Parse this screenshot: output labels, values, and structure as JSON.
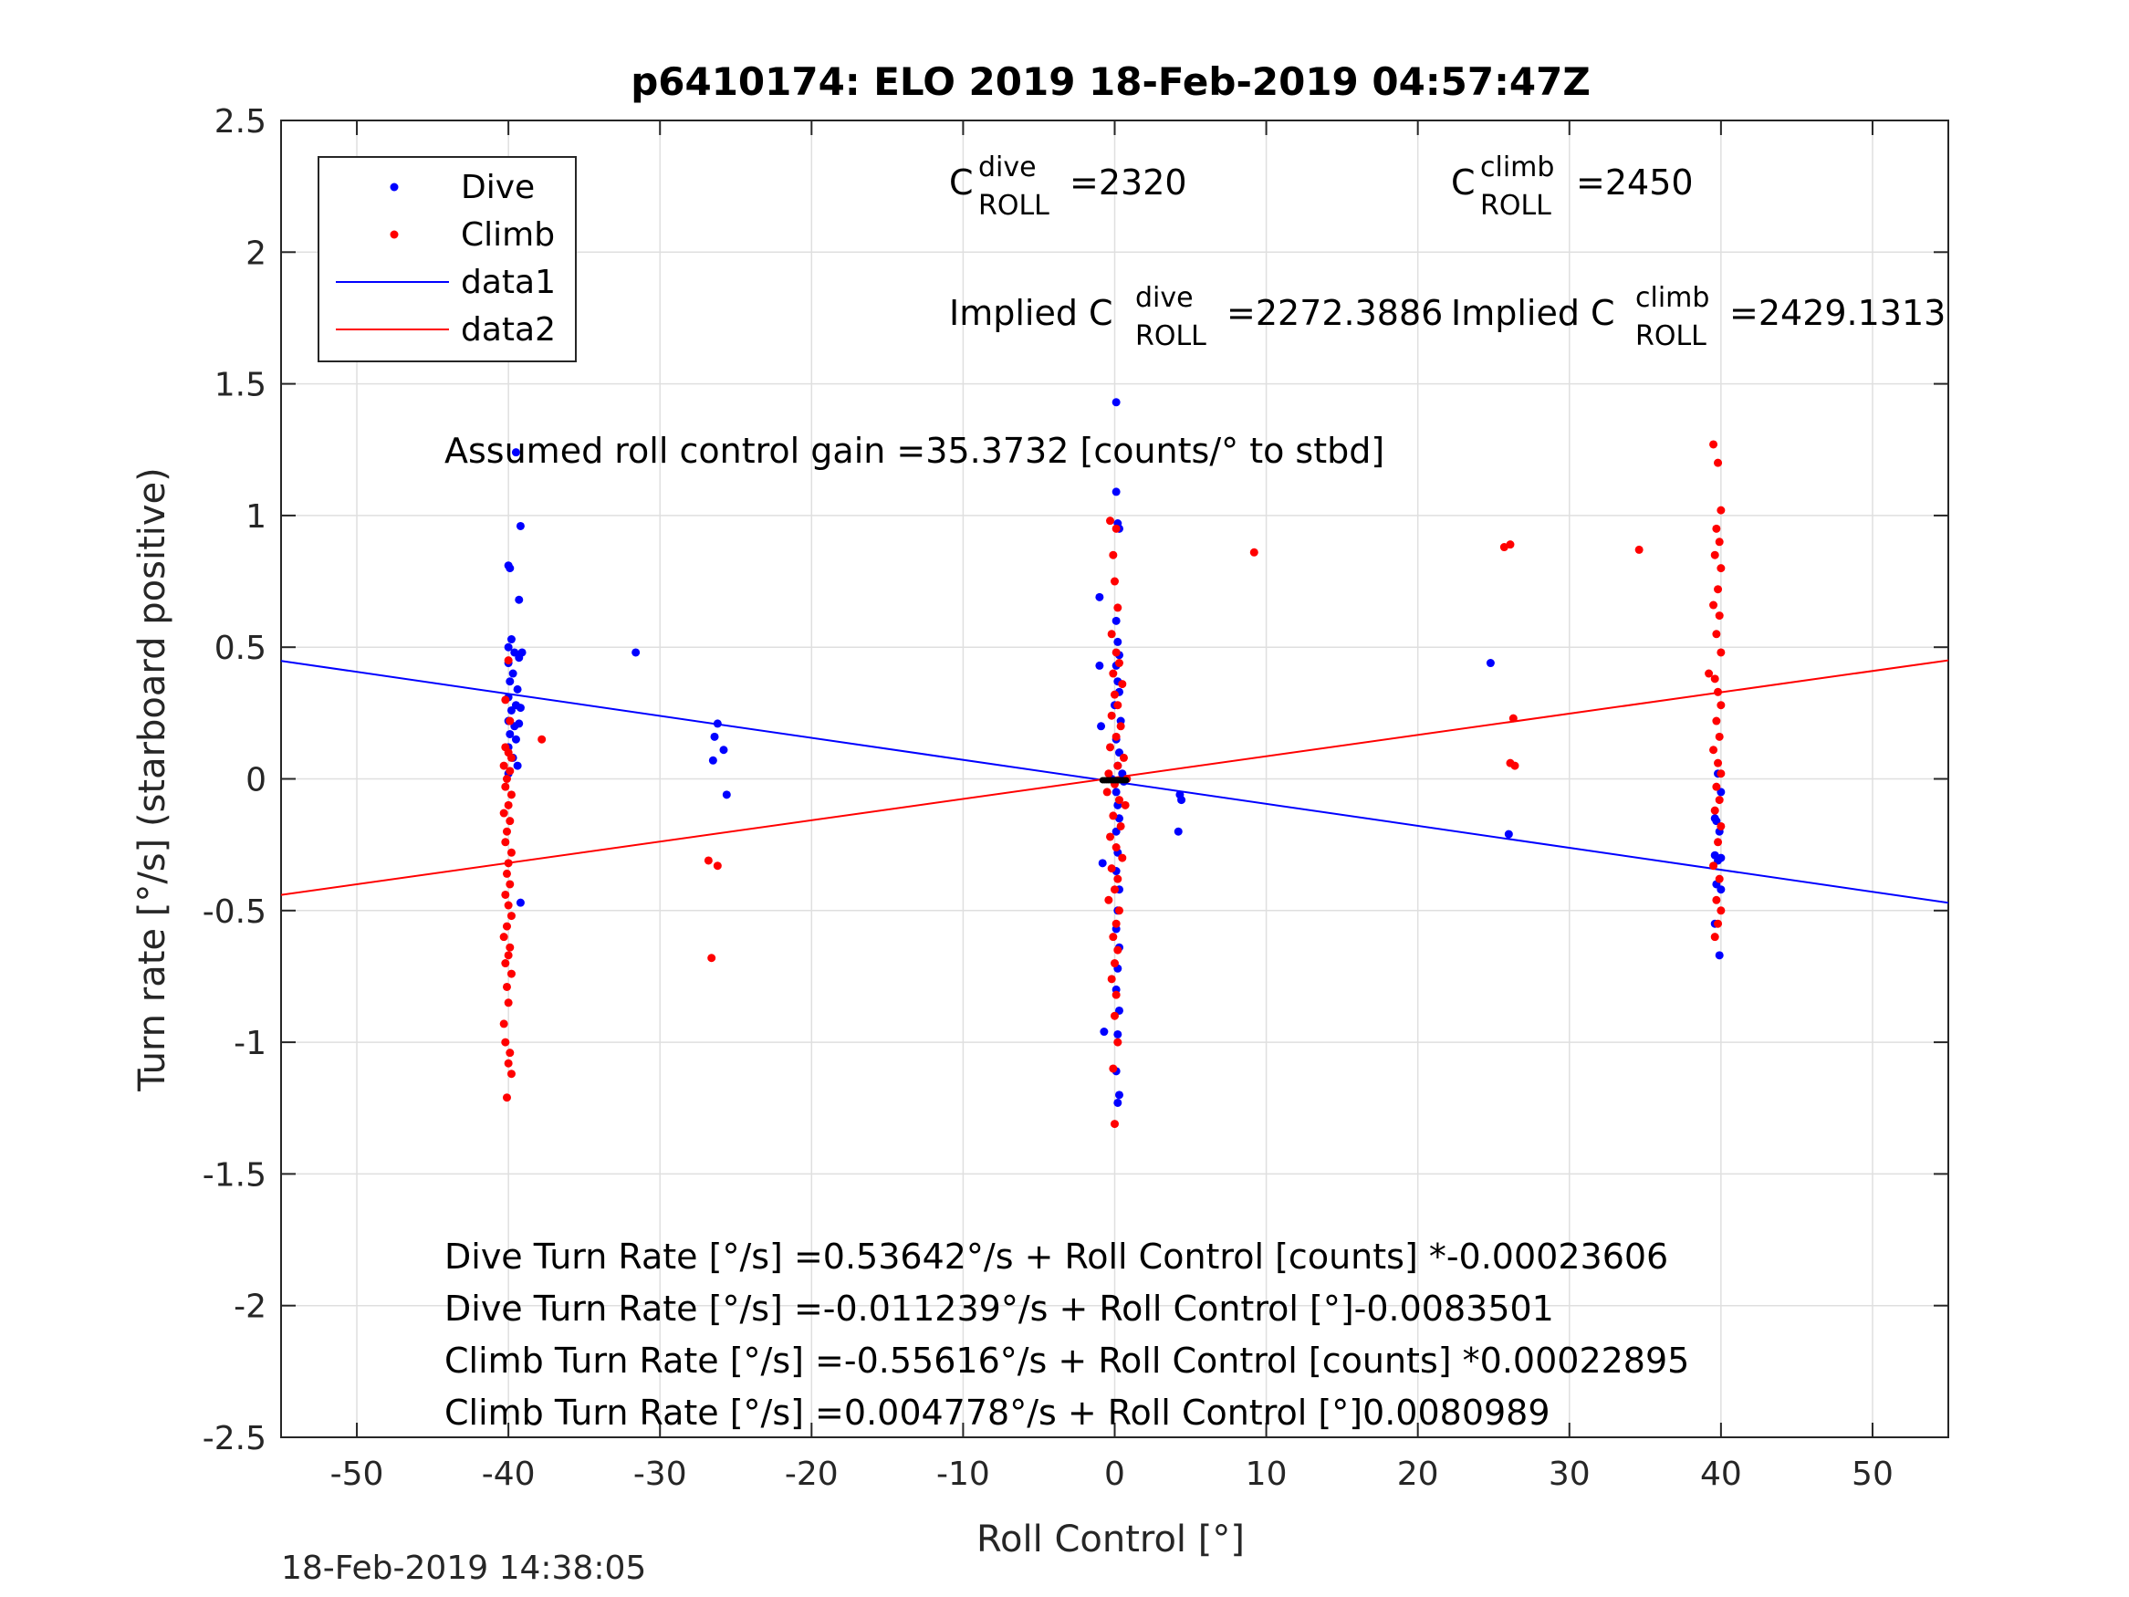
{
  "chart_data": {
    "type": "scatter",
    "title": "p6410174: ELO 2019 18-Feb-2019 04:57:47Z",
    "xlabel": "Roll Control [°]",
    "ylabel": "Turn rate [°/s] (starboard positive)",
    "xlim": [
      -55,
      55
    ],
    "ylim": [
      -2.5,
      2.5
    ],
    "xticks": [
      -50,
      -40,
      -30,
      -20,
      -10,
      0,
      10,
      20,
      30,
      40,
      50
    ],
    "yticks": [
      2.5,
      2,
      1.5,
      1,
      0.5,
      0,
      -0.5,
      -1,
      -1.5,
      -2,
      -2.5
    ],
    "grid": true,
    "legend": {
      "placement": "top-left",
      "entries": [
        {
          "label": "Dive",
          "color": "#0000ff",
          "marker": "dot"
        },
        {
          "label": "Climb",
          "color": "#ff0000",
          "marker": "dot"
        },
        {
          "label": "data1",
          "color": "#0000ff",
          "marker": "line"
        },
        {
          "label": "data2",
          "color": "#ff0000",
          "marker": "line"
        }
      ]
    },
    "series": [
      {
        "name": "Dive",
        "color": "#0000ff",
        "points": [
          [
            -40,
            0.81
          ],
          [
            -39.9,
            0.8
          ],
          [
            -39.5,
            1.24
          ],
          [
            -39.2,
            0.96
          ],
          [
            -39.3,
            0.68
          ],
          [
            -39.8,
            0.53
          ],
          [
            -40,
            0.5
          ],
          [
            -39.6,
            0.48
          ],
          [
            -39.3,
            0.46
          ],
          [
            -39.1,
            0.48
          ],
          [
            -40,
            0.44
          ],
          [
            -39.7,
            0.4
          ],
          [
            -39.9,
            0.37
          ],
          [
            -39.4,
            0.34
          ],
          [
            -40,
            0.31
          ],
          [
            -39.5,
            0.28
          ],
          [
            -39.8,
            0.26
          ],
          [
            -39.2,
            0.27
          ],
          [
            -40,
            0.22
          ],
          [
            -39.6,
            0.2
          ],
          [
            -39.3,
            0.21
          ],
          [
            -39.9,
            0.17
          ],
          [
            -39.5,
            0.15
          ],
          [
            -40,
            0.12
          ],
          [
            -39.7,
            0.08
          ],
          [
            -39.4,
            0.05
          ],
          [
            -40,
            0.02
          ],
          [
            -39.2,
            -0.47
          ],
          [
            -31.6,
            0.48
          ],
          [
            -26.2,
            0.21
          ],
          [
            -26.4,
            0.16
          ],
          [
            -25.8,
            0.11
          ],
          [
            -26.5,
            0.07
          ],
          [
            -25.6,
            -0.06
          ],
          [
            -1,
            0.69
          ],
          [
            -1,
            0.43
          ],
          [
            -0.9,
            0.2
          ],
          [
            -0.8,
            -0.32
          ],
          [
            -0.7,
            -0.96
          ],
          [
            0.1,
            1.43
          ],
          [
            0.1,
            1.09
          ],
          [
            0.2,
            0.97
          ],
          [
            0.3,
            0.95
          ],
          [
            0.1,
            0.6
          ],
          [
            0.2,
            0.52
          ],
          [
            0.3,
            0.47
          ],
          [
            0.1,
            0.43
          ],
          [
            0.2,
            0.37
          ],
          [
            0.3,
            0.33
          ],
          [
            0,
            0.28
          ],
          [
            0.4,
            0.22
          ],
          [
            0.1,
            0.15
          ],
          [
            0.3,
            0.1
          ],
          [
            0.2,
            0.05
          ],
          [
            0.5,
            0.02
          ],
          [
            -0.2,
            0
          ],
          [
            0.6,
            -0.01
          ],
          [
            0.1,
            -0.05
          ],
          [
            0.2,
            -0.1
          ],
          [
            0.3,
            -0.15
          ],
          [
            0.1,
            -0.2
          ],
          [
            0.2,
            -0.28
          ],
          [
            0.1,
            -0.35
          ],
          [
            0.3,
            -0.42
          ],
          [
            0.2,
            -0.5
          ],
          [
            0.1,
            -0.57
          ],
          [
            0.3,
            -0.64
          ],
          [
            0.2,
            -0.72
          ],
          [
            0.1,
            -0.8
          ],
          [
            0.3,
            -0.88
          ],
          [
            0.2,
            -0.97
          ],
          [
            0.1,
            -1.11
          ],
          [
            0.3,
            -1.2
          ],
          [
            0.2,
            -1.23
          ],
          [
            4.3,
            -0.06
          ],
          [
            4.4,
            -0.08
          ],
          [
            4.2,
            -0.2
          ],
          [
            24.8,
            0.44
          ],
          [
            26,
            -0.21
          ],
          [
            39.6,
            -0.15
          ],
          [
            39.8,
            0.02
          ],
          [
            40,
            -0.05
          ],
          [
            39.7,
            -0.16
          ],
          [
            39.9,
            -0.2
          ],
          [
            39.6,
            -0.29
          ],
          [
            40,
            -0.3
          ],
          [
            39.8,
            -0.31
          ],
          [
            39.7,
            -0.4
          ],
          [
            40,
            -0.42
          ],
          [
            39.6,
            -0.55
          ],
          [
            39.9,
            -0.67
          ]
        ]
      },
      {
        "name": "Climb",
        "color": "#ff0000",
        "points": [
          [
            -40.2,
            0.12
          ],
          [
            -40,
            0.1
          ],
          [
            -39.8,
            0.08
          ],
          [
            -40.3,
            0.05
          ],
          [
            -39.9,
            0.03
          ],
          [
            -40.1,
            0
          ],
          [
            -40.2,
            -0.03
          ],
          [
            -39.8,
            -0.06
          ],
          [
            -40,
            -0.1
          ],
          [
            -40.3,
            -0.13
          ],
          [
            -39.9,
            -0.16
          ],
          [
            -40.1,
            -0.2
          ],
          [
            -40.2,
            -0.24
          ],
          [
            -39.8,
            -0.28
          ],
          [
            -40,
            -0.32
          ],
          [
            -40.1,
            -0.36
          ],
          [
            -39.9,
            -0.4
          ],
          [
            -40.2,
            -0.44
          ],
          [
            -40,
            -0.48
          ],
          [
            -39.8,
            -0.52
          ],
          [
            -40.1,
            -0.56
          ],
          [
            -40.3,
            -0.6
          ],
          [
            -39.9,
            -0.64
          ],
          [
            -40,
            -0.67
          ],
          [
            -40.2,
            -0.7
          ],
          [
            -39.8,
            -0.74
          ],
          [
            -40.1,
            -0.79
          ],
          [
            -40,
            -0.85
          ],
          [
            -40.3,
            -0.93
          ],
          [
            -40.2,
            -1
          ],
          [
            -39.9,
            -1.04
          ],
          [
            -40,
            -1.08
          ],
          [
            -39.8,
            -1.12
          ],
          [
            -40.1,
            -1.21
          ],
          [
            -39.9,
            0.22
          ],
          [
            -40.2,
            0.3
          ],
          [
            -40,
            0.45
          ],
          [
            -37.8,
            0.15
          ],
          [
            -26.8,
            -0.31
          ],
          [
            -26.2,
            -0.33
          ],
          [
            -26.6,
            -0.68
          ],
          [
            -0.3,
            0.98
          ],
          [
            0.1,
            0.95
          ],
          [
            -0.1,
            0.85
          ],
          [
            0,
            0.75
          ],
          [
            0.2,
            0.65
          ],
          [
            -0.2,
            0.55
          ],
          [
            0.1,
            0.48
          ],
          [
            0.3,
            0.44
          ],
          [
            -0.1,
            0.4
          ],
          [
            0.5,
            0.36
          ],
          [
            0,
            0.32
          ],
          [
            0.2,
            0.28
          ],
          [
            -0.2,
            0.24
          ],
          [
            0.4,
            0.2
          ],
          [
            0.1,
            0.16
          ],
          [
            -0.3,
            0.12
          ],
          [
            0.6,
            0.08
          ],
          [
            0.2,
            0.05
          ],
          [
            -0.4,
            0.02
          ],
          [
            0.8,
            0
          ],
          [
            0,
            -0.02
          ],
          [
            -0.5,
            -0.05
          ],
          [
            0.3,
            -0.08
          ],
          [
            0.7,
            -0.1
          ],
          [
            -0.1,
            -0.14
          ],
          [
            0.4,
            -0.18
          ],
          [
            -0.3,
            -0.22
          ],
          [
            0.1,
            -0.26
          ],
          [
            0.5,
            -0.3
          ],
          [
            -0.2,
            -0.34
          ],
          [
            0.2,
            -0.38
          ],
          [
            0,
            -0.42
          ],
          [
            -0.4,
            -0.46
          ],
          [
            0.3,
            -0.5
          ],
          [
            0.1,
            -0.55
          ],
          [
            -0.1,
            -0.6
          ],
          [
            0.2,
            -0.65
          ],
          [
            0,
            -0.7
          ],
          [
            -0.2,
            -0.76
          ],
          [
            0.1,
            -0.82
          ],
          [
            0,
            -0.9
          ],
          [
            0.2,
            -1.0
          ],
          [
            -0.1,
            -1.1
          ],
          [
            0,
            -1.31
          ],
          [
            9.2,
            0.86
          ],
          [
            25.7,
            0.88
          ],
          [
            26.1,
            0.89
          ],
          [
            26.3,
            0.23
          ],
          [
            26.1,
            0.06
          ],
          [
            26.4,
            0.05
          ],
          [
            34.6,
            0.87
          ],
          [
            39.5,
            1.27
          ],
          [
            39.8,
            1.2
          ],
          [
            40,
            1.02
          ],
          [
            39.7,
            0.95
          ],
          [
            39.9,
            0.9
          ],
          [
            39.6,
            0.85
          ],
          [
            40,
            0.8
          ],
          [
            39.8,
            0.72
          ],
          [
            39.5,
            0.66
          ],
          [
            39.9,
            0.62
          ],
          [
            39.7,
            0.55
          ],
          [
            39.2,
            0.4
          ],
          [
            40,
            0.48
          ],
          [
            39.6,
            0.38
          ],
          [
            39.8,
            0.33
          ],
          [
            40,
            0.28
          ],
          [
            39.7,
            0.22
          ],
          [
            39.9,
            0.16
          ],
          [
            39.5,
            0.11
          ],
          [
            39.8,
            0.06
          ],
          [
            40,
            0.02
          ],
          [
            39.7,
            -0.03
          ],
          [
            39.9,
            -0.08
          ],
          [
            39.6,
            -0.12
          ],
          [
            40,
            -0.18
          ],
          [
            39.8,
            -0.24
          ],
          [
            39.5,
            -0.33
          ],
          [
            39.9,
            -0.38
          ],
          [
            39.7,
            -0.46
          ],
          [
            40,
            -0.5
          ],
          [
            39.8,
            -0.55
          ],
          [
            39.6,
            -0.6
          ]
        ]
      }
    ],
    "fit_lines": [
      {
        "name": "data1",
        "color": "#0000ff",
        "intercept": -0.011239,
        "slope": -0.0083501
      },
      {
        "name": "data2",
        "color": "#ff0000",
        "intercept": 0.004778,
        "slope": 0.0080989
      }
    ],
    "annotations": {
      "c_dive": {
        "base": "C",
        "sup": "dive",
        "sub": "ROLL",
        "value": "=2320"
      },
      "c_climb": {
        "base": "C",
        "sup": "climb",
        "sub": "ROLL",
        "value": "=2450"
      },
      "implied_dive": {
        "base": "Implied C",
        "sup": "dive",
        "sub": "ROLL",
        "value": "=2272.3886"
      },
      "implied_climb": {
        "base": "Implied C",
        "sup": "climb",
        "sub": "ROLL",
        "value": "=2429.1313"
      },
      "gain": "Assumed roll control gain =35.3732 [counts/° to stbd]",
      "equations": [
        "Dive Turn Rate [°/s] =0.53642°/s + Roll Control [counts] *-0.00023606",
        "Dive Turn Rate [°/s] =-0.011239°/s + Roll Control [°]-0.0083501",
        "Climb Turn Rate [°/s] =-0.55616°/s + Roll Control [counts] *0.00022895",
        "Climb Turn Rate [°/s] =0.004778°/s + Roll Control [°]0.0080989"
      ]
    },
    "footer_timestamp": "18-Feb-2019 14:38:05"
  }
}
